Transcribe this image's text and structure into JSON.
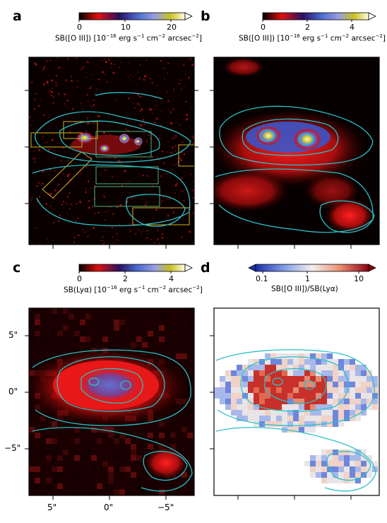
{
  "chart_data": [
    {
      "panel": "a",
      "type": "heatmap",
      "colorbar": {
        "label_main": "SB([O III]) [10",
        "label_exp": "−16",
        "label_units": " erg s",
        "label_exp2": "−1",
        "label_cm": " cm",
        "label_exp3": "−2",
        "label_arcsec": " arcsec",
        "label_exp4": "−2",
        "label_close": "]",
        "ticks": [
          "0",
          "10",
          "20"
        ],
        "range": [
          0,
          23
        ]
      }
    },
    {
      "panel": "b",
      "type": "heatmap",
      "colorbar": {
        "label_main": "SB([O III]) [10",
        "label_exp": "−16",
        "label_units": " erg s",
        "label_exp2": "−1",
        "label_cm": " cm",
        "label_exp3": "−2",
        "label_arcsec": " arcsec",
        "label_exp4": "−2",
        "label_close": "]",
        "ticks": [
          "0",
          "2",
          "4"
        ],
        "range": [
          0,
          4.8
        ]
      }
    },
    {
      "panel": "c",
      "type": "heatmap",
      "colorbar": {
        "label_main": "SB(Lyα) [10",
        "label_exp": "−16",
        "label_units": " erg s",
        "label_exp2": "−1",
        "label_cm": " cm",
        "label_exp3": "−2",
        "label_arcsec": " arcsec",
        "label_exp4": "−2",
        "label_close": "]",
        "ticks": [
          "0",
          "2",
          "4"
        ],
        "range": [
          0,
          4.8
        ]
      },
      "yticks": [
        "5\"",
        "0\"",
        "−5\""
      ],
      "xticks": [
        "5\"",
        "0\"",
        "−5\""
      ]
    },
    {
      "panel": "d",
      "type": "heatmap",
      "colorbar": {
        "label": "SB([O III])/SB(Lyα)",
        "ticks": [
          "0.1",
          "1",
          "10"
        ],
        "scale": "log",
        "range": [
          0.07,
          12
        ]
      }
    }
  ],
  "letters": [
    "a",
    "b",
    "c",
    "d"
  ],
  "colors": {
    "contour": "#2bc0c8",
    "box_yellow": "#d6b21e",
    "box_green": "#4fb37d",
    "bg_dark": "#0a0000"
  }
}
